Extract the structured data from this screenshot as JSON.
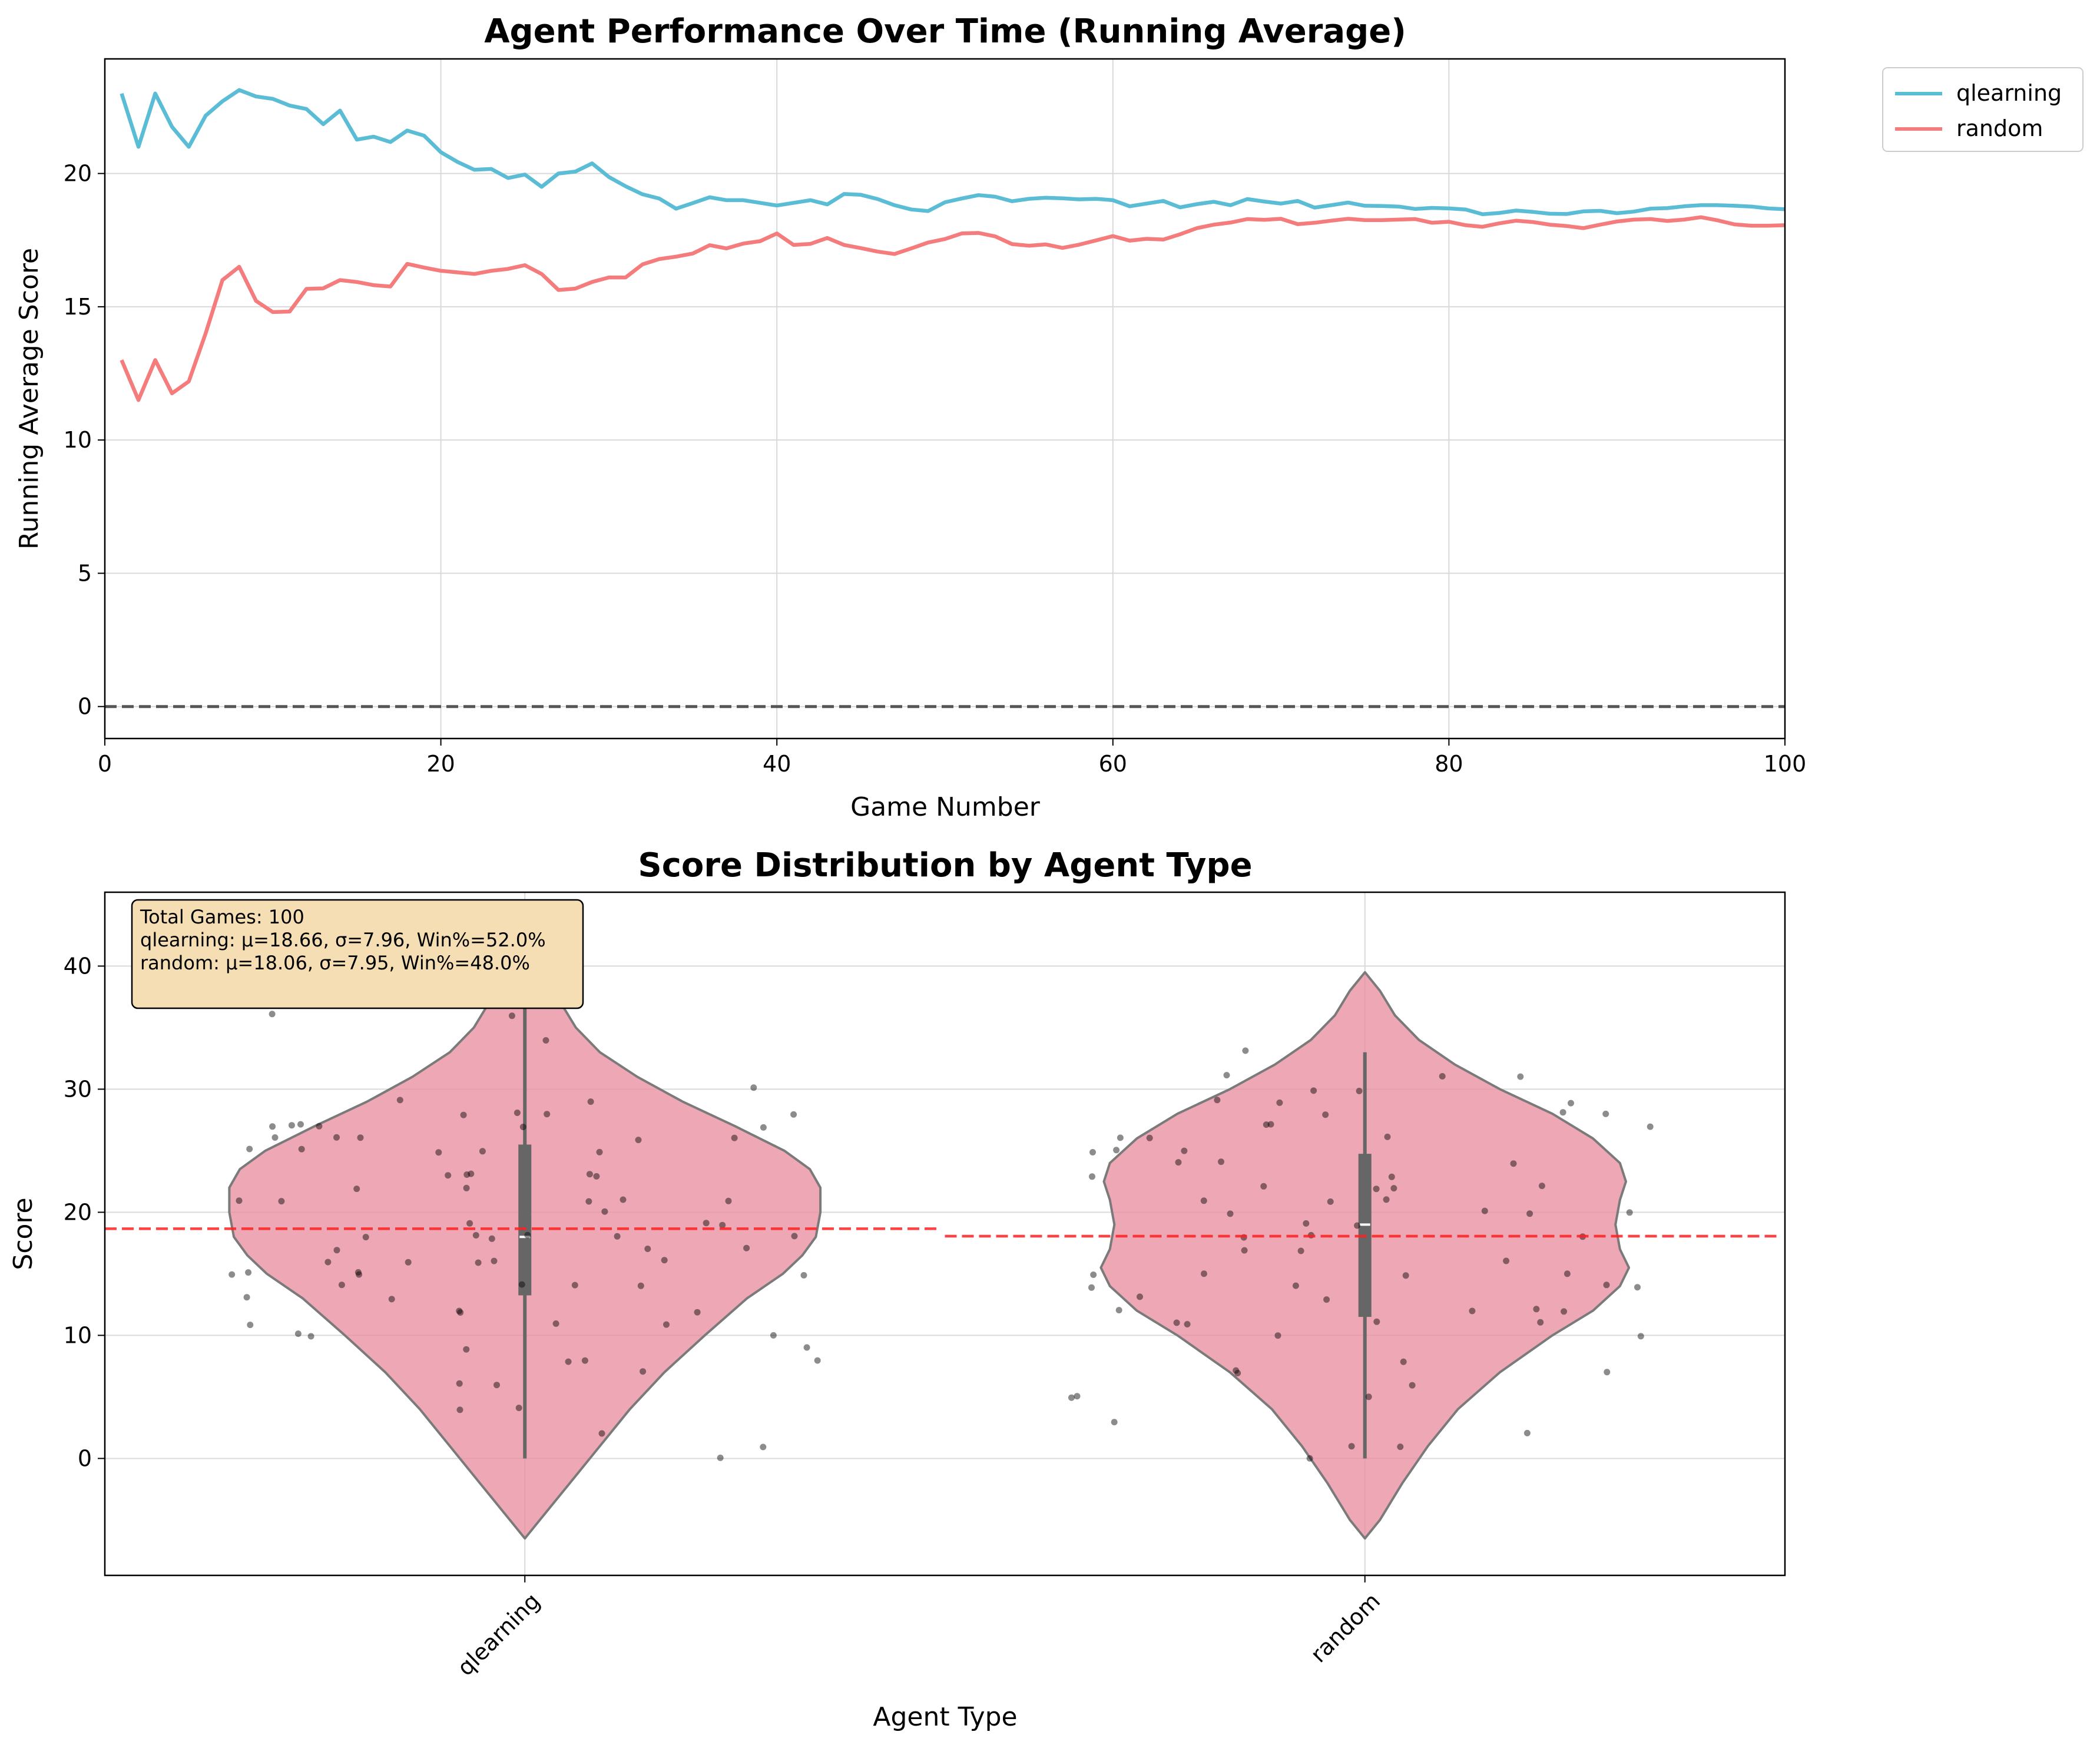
{
  "chart_data": [
    {
      "type": "line",
      "title": "Agent Performance Over Time (Running Average)",
      "xlabel": "Game Number",
      "ylabel": "Running Average Score",
      "xlim": [
        0,
        100
      ],
      "ylim": [
        -1.2,
        24.3
      ],
      "xticks": [
        0,
        20,
        40,
        60,
        80,
        100
      ],
      "yticks": [
        0,
        5,
        10,
        15,
        20
      ],
      "grid": true,
      "legend": "outside top-right",
      "reference_line": {
        "y": 0,
        "style": "dashed",
        "color": "#555555"
      },
      "series": [
        {
          "name": "qlearning",
          "color": "#5bbcd6",
          "x": [
            1,
            2,
            3,
            4,
            5,
            6,
            7,
            8,
            9,
            10,
            11,
            12,
            13,
            14,
            15,
            16,
            17,
            18,
            19,
            20,
            21,
            22,
            23,
            24,
            25,
            26,
            27,
            28,
            29,
            30,
            31,
            32,
            33,
            34,
            35,
            36,
            37,
            38,
            39,
            40,
            41,
            42,
            43,
            44,
            45,
            46,
            47,
            48,
            49,
            50,
            51,
            52,
            53,
            54,
            55,
            56,
            57,
            58,
            59,
            60,
            61,
            62,
            63,
            64,
            65,
            66,
            67,
            68,
            69,
            70,
            71,
            72,
            73,
            74,
            75,
            76,
            77,
            78,
            79,
            80,
            81,
            82,
            83,
            84,
            85,
            86,
            87,
            88,
            89,
            90,
            91,
            92,
            93,
            94,
            95,
            96,
            97,
            98,
            99,
            100
          ],
          "values": [
            23.0,
            21.0,
            23.0,
            21.75,
            21.0,
            22.17,
            22.71,
            23.13,
            22.89,
            22.8,
            22.55,
            22.42,
            21.85,
            22.36,
            21.27,
            21.38,
            21.18,
            21.61,
            21.42,
            20.8,
            20.43,
            20.14,
            20.17,
            19.83,
            19.96,
            19.5,
            20.0,
            20.07,
            20.38,
            19.87,
            19.52,
            19.22,
            19.06,
            18.68,
            18.89,
            19.11,
            19.0,
            19.0,
            18.9,
            18.8,
            18.9,
            19.0,
            18.84,
            19.23,
            19.2,
            19.04,
            18.81,
            18.65,
            18.59,
            18.92,
            19.06,
            19.19,
            19.13,
            18.96,
            19.05,
            19.09,
            19.07,
            19.03,
            19.05,
            19.0,
            18.77,
            18.87,
            18.97,
            18.73,
            18.85,
            18.94,
            18.81,
            19.04,
            18.95,
            18.87,
            18.97,
            18.72,
            18.81,
            18.91,
            18.79,
            18.78,
            18.76,
            18.67,
            18.71,
            18.69,
            18.65,
            18.47,
            18.52,
            18.61,
            18.56,
            18.49,
            18.48,
            18.58,
            18.6,
            18.51,
            18.57,
            18.68,
            18.7,
            18.77,
            18.81,
            18.81,
            18.79,
            18.76,
            18.69,
            18.66
          ]
        },
        {
          "name": "random",
          "color": "#f47c7c",
          "x": [
            1,
            2,
            3,
            4,
            5,
            6,
            7,
            8,
            9,
            10,
            11,
            12,
            13,
            14,
            15,
            16,
            17,
            18,
            19,
            20,
            21,
            22,
            23,
            24,
            25,
            26,
            27,
            28,
            29,
            30,
            31,
            32,
            33,
            34,
            35,
            36,
            37,
            38,
            39,
            40,
            41,
            42,
            43,
            44,
            45,
            46,
            47,
            48,
            49,
            50,
            51,
            52,
            53,
            54,
            55,
            56,
            57,
            58,
            59,
            60,
            61,
            62,
            63,
            64,
            65,
            66,
            67,
            68,
            69,
            70,
            71,
            72,
            73,
            74,
            75,
            76,
            77,
            78,
            79,
            80,
            81,
            82,
            83,
            84,
            85,
            86,
            87,
            88,
            89,
            90,
            91,
            92,
            93,
            94,
            95,
            96,
            97,
            98,
            99,
            100
          ],
          "values": [
            13.0,
            11.5,
            13.0,
            11.75,
            12.2,
            14.0,
            16.0,
            16.5,
            15.22,
            14.8,
            14.82,
            15.67,
            15.69,
            16.0,
            15.93,
            15.81,
            15.76,
            16.61,
            16.47,
            16.35,
            16.29,
            16.23,
            16.35,
            16.42,
            16.56,
            16.23,
            15.63,
            15.68,
            15.93,
            16.1,
            16.1,
            16.59,
            16.79,
            16.88,
            17.0,
            17.31,
            17.19,
            17.37,
            17.46,
            17.75,
            17.32,
            17.36,
            17.58,
            17.32,
            17.2,
            17.07,
            16.98,
            17.19,
            17.41,
            17.54,
            17.75,
            17.77,
            17.64,
            17.35,
            17.29,
            17.34,
            17.21,
            17.33,
            17.49,
            17.65,
            17.48,
            17.55,
            17.52,
            17.72,
            17.95,
            18.08,
            18.16,
            18.29,
            18.26,
            18.3,
            18.1,
            18.15,
            18.23,
            18.3,
            18.25,
            18.25,
            18.27,
            18.29,
            18.15,
            18.19,
            18.06,
            18.0,
            18.13,
            18.23,
            18.18,
            18.08,
            18.03,
            17.95,
            18.08,
            18.2,
            18.27,
            18.29,
            18.22,
            18.27,
            18.36,
            18.24,
            18.09,
            18.04,
            18.04,
            18.06
          ]
        }
      ]
    },
    {
      "type": "violin",
      "title": "Score Distribution by Agent Type",
      "xlabel": "Agent Type",
      "ylabel": "Score",
      "categories": [
        "qlearning",
        "random"
      ],
      "ylim": [
        -9.5,
        46
      ],
      "yticks": [
        0,
        10,
        20,
        30,
        40
      ],
      "grid": true,
      "fill_color": "#e8899c",
      "info_box": {
        "lines": [
          "Total Games: 100",
          "qlearning: μ=18.66, σ=7.96, Win%=52.0%",
          "random: μ=18.06, σ=7.95, Win%=48.0%"
        ],
        "background": "#f5deb3"
      },
      "violins": [
        {
          "name": "qlearning",
          "mean": 18.66,
          "std": 7.96,
          "win_pct": 52.0,
          "min": 0,
          "q1": 13.25,
          "median": 18,
          "q3": 25.5,
          "max": 37,
          "density_y": [
            -6.5,
            -5,
            -2,
            1,
            4,
            7,
            10,
            13,
            15,
            16.5,
            18,
            20,
            22,
            23.5,
            25,
            27,
            29,
            31,
            33,
            35,
            37,
            39,
            41,
            43,
            44
          ],
          "density_halfwidth": [
            0,
            0.1,
            0.3,
            0.5,
            0.7,
            0.93,
            1.2,
            1.48,
            1.72,
            1.85,
            1.94,
            1.97,
            1.97,
            1.9,
            1.73,
            1.4,
            1.05,
            0.75,
            0.5,
            0.34,
            0.24,
            0.17,
            0.1,
            0.04,
            0
          ],
          "points": [
            30,
            27,
            27,
            23,
            23,
            25,
            28,
            27,
            27,
            16,
            15,
            14,
            16,
            11,
            17,
            21,
            9,
            8,
            2,
            1,
            12,
            6,
            22,
            22,
            26,
            26,
            19,
            17,
            14,
            18,
            13,
            16,
            20,
            15,
            28,
            34,
            37,
            19,
            28,
            26,
            21,
            15,
            18,
            23,
            26,
            27,
            25,
            28,
            12,
            18,
            18,
            21,
            17,
            11,
            10,
            8,
            25,
            25,
            18,
            23,
            29,
            21,
            15,
            13,
            11,
            10,
            9,
            4,
            4,
            36,
            36,
            29,
            26,
            23,
            19,
            16,
            16,
            14,
            14,
            12,
            10,
            8,
            7,
            6,
            0,
            15,
            18,
            21,
            25,
            27
          ]
        },
        {
          "name": "random",
          "mean": 18.06,
          "std": 7.95,
          "win_pct": 48.0,
          "min": 0,
          "q1": 11.5,
          "median": 19,
          "q3": 24.75,
          "max": 33,
          "density_y": [
            -6.5,
            -5,
            -2,
            1,
            4,
            7,
            10,
            12,
            14,
            15.5,
            17,
            19,
            21,
            22.5,
            24,
            26,
            28,
            30,
            32,
            34,
            36,
            38,
            39.5
          ],
          "density_halfwidth": [
            0,
            0.1,
            0.25,
            0.42,
            0.62,
            0.9,
            1.25,
            1.52,
            1.7,
            1.76,
            1.7,
            1.67,
            1.7,
            1.74,
            1.7,
            1.52,
            1.25,
            0.9,
            0.6,
            0.36,
            0.2,
            0.1,
            0
          ],
          "points": [
            31,
            28,
            27,
            26,
            24,
            24,
            22,
            20,
            18,
            15,
            14,
            13,
            10,
            7,
            5,
            0,
            29,
            29,
            27,
            25,
            22,
            19,
            17,
            12,
            11,
            28,
            27,
            24,
            23,
            26,
            26,
            21,
            20,
            18,
            16,
            15,
            12,
            7,
            7,
            5,
            3,
            2,
            1,
            1,
            25,
            22,
            20,
            19,
            17,
            12,
            11,
            5,
            33,
            31,
            30,
            30,
            28,
            25,
            22,
            21,
            21,
            20,
            18,
            15,
            15,
            14,
            14,
            13,
            12,
            11,
            11,
            10,
            8,
            6,
            29,
            23,
            31,
            14
          ]
        }
      ]
    }
  ]
}
